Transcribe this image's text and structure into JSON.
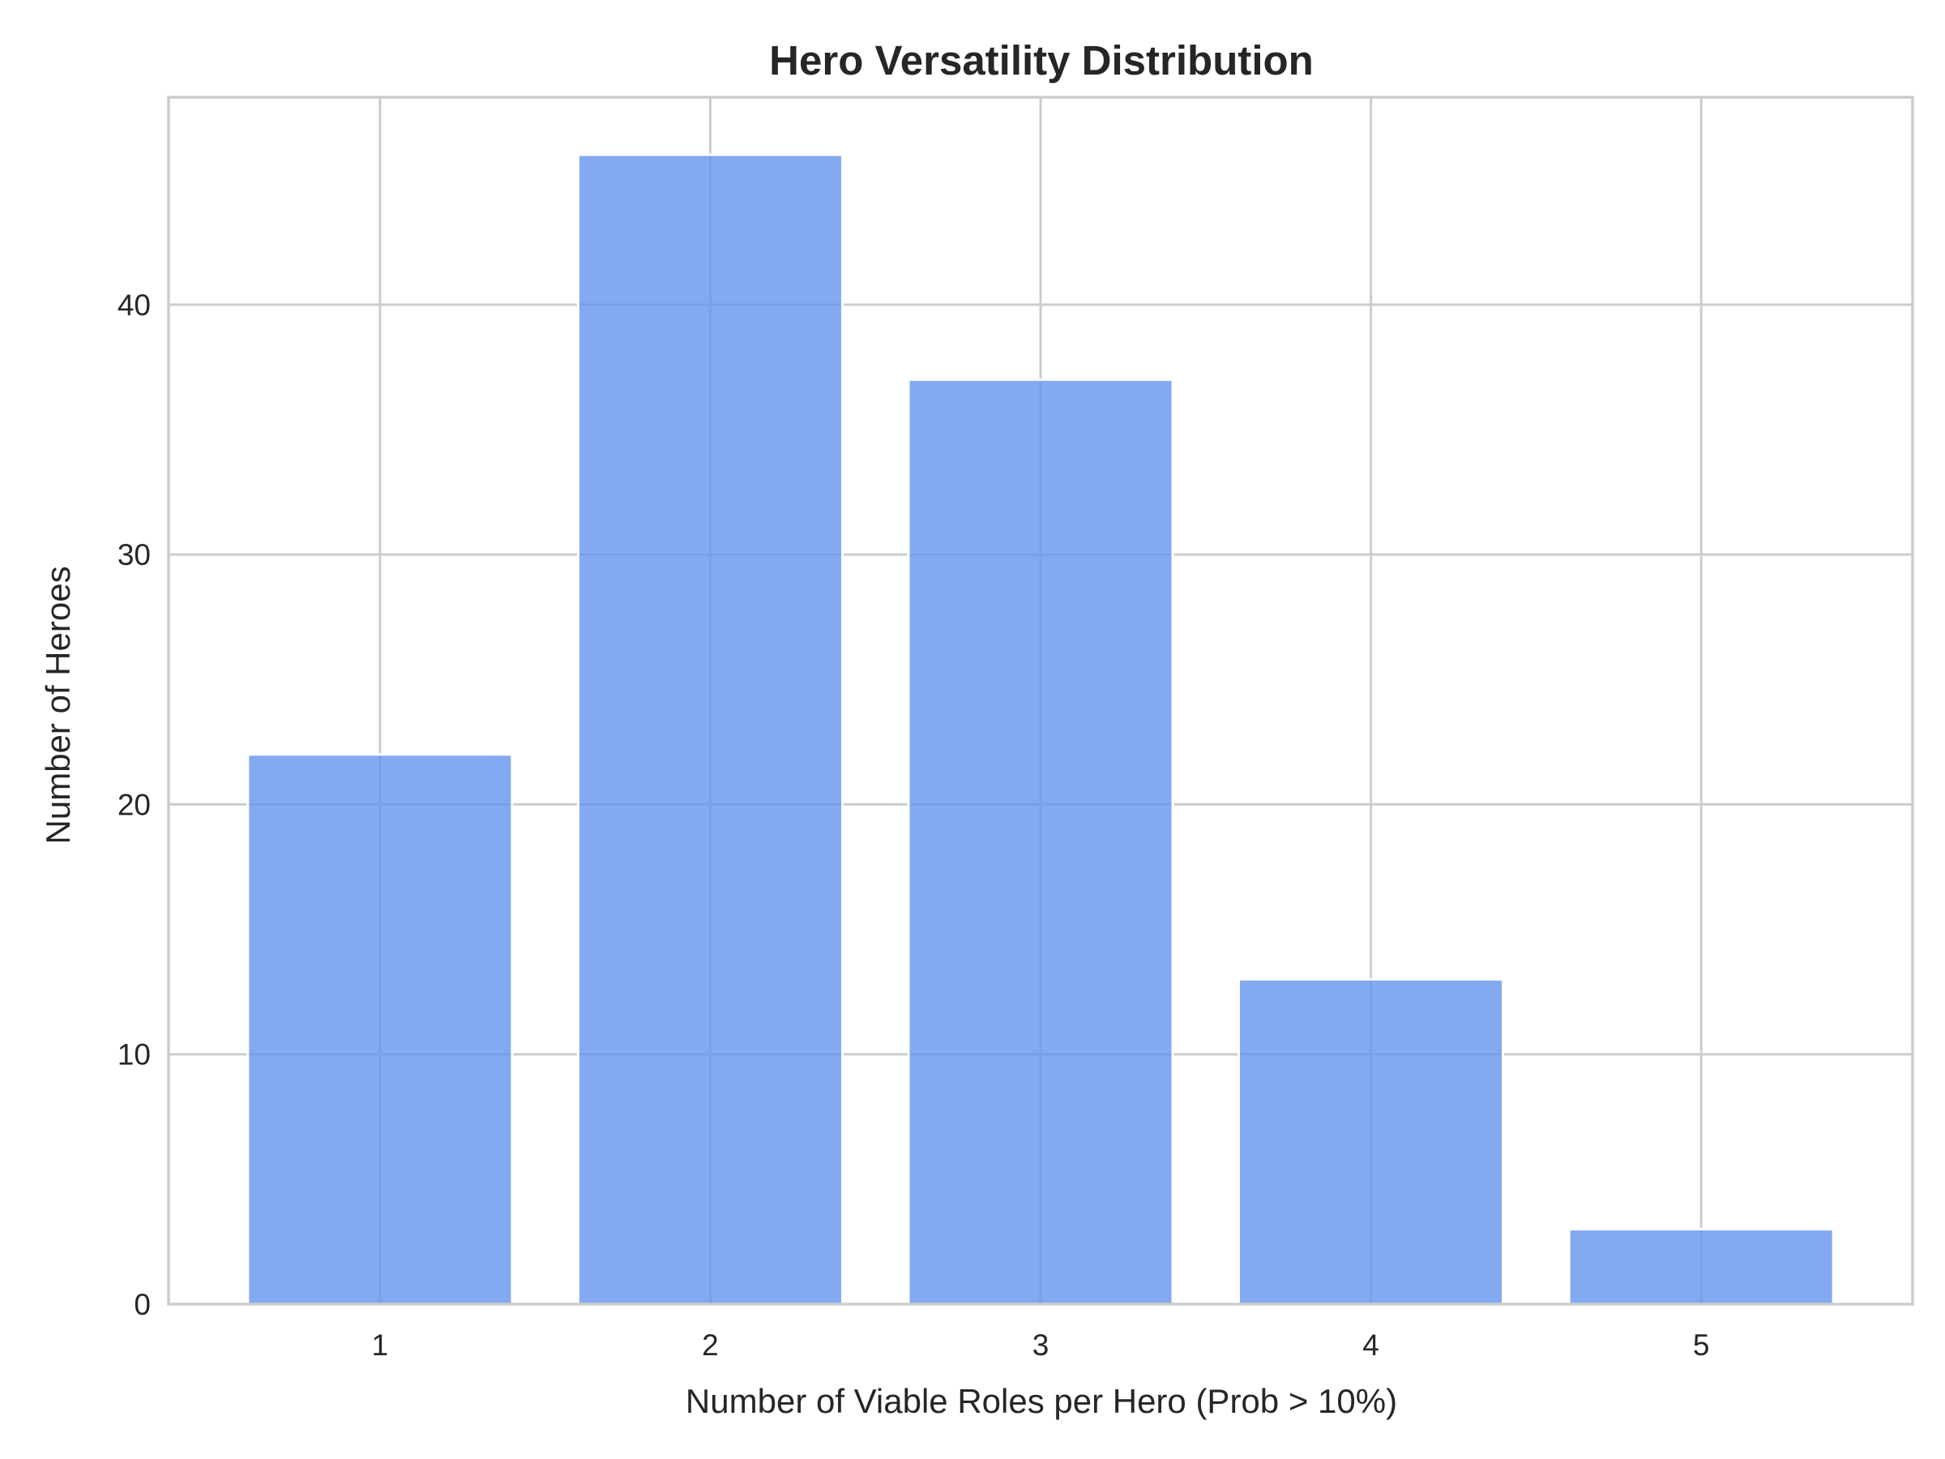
{
  "chart_data": {
    "type": "bar",
    "title": "Hero Versatility Distribution",
    "xlabel": "Number of Viable Roles per Hero (Prob > 10%)",
    "ylabel": "Number of Heroes",
    "categories": [
      "1",
      "2",
      "3",
      "4",
      "5"
    ],
    "values": [
      22,
      46,
      37,
      13,
      3
    ],
    "ylim": [
      0,
      48.3
    ],
    "yticks": [
      "0",
      "10",
      "20",
      "30",
      "40"
    ],
    "bar_color": "#6495ED",
    "bar_opacity": 0.8,
    "grid": true,
    "legend": false
  }
}
